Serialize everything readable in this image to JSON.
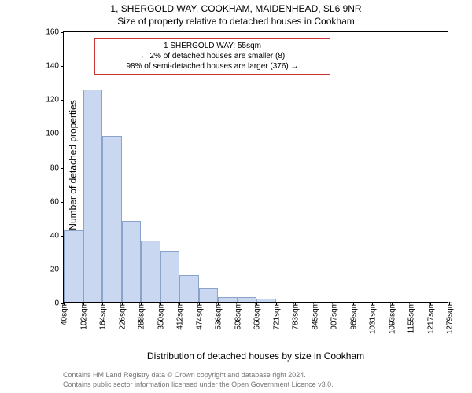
{
  "titles": {
    "main": "1, SHERGOLD WAY, COOKHAM, MAIDENHEAD, SL6 9NR",
    "sub": "Size of property relative to detached houses in Cookham"
  },
  "legend": {
    "line1": "1 SHERGOLD WAY: 55sqm",
    "line2": "← 2% of detached houses are smaller (8)",
    "line3": "98% of semi-detached houses are larger (376) →",
    "border_color": "#cc3333"
  },
  "axes": {
    "ylabel": "Number of detached properties",
    "xlabel": "Distribution of detached houses by size in Cookham"
  },
  "footer": {
    "line1": "Contains HM Land Registry data © Crown copyright and database right 2024.",
    "line2": "Contains public sector information licensed under the Open Government Licence v3.0."
  },
  "chart": {
    "type": "histogram",
    "background_color": "#ffffff",
    "plot_border_color": "#000000",
    "bar_fill": "#c9d8f0",
    "bar_stroke": "#8aa3c8",
    "ylim": [
      0,
      160
    ],
    "ytick_step": 20,
    "yticks": [
      0,
      20,
      40,
      60,
      80,
      100,
      120,
      140,
      160
    ],
    "xtick_labels": [
      "40sqm",
      "102sqm",
      "164sqm",
      "226sqm",
      "288sqm",
      "350sqm",
      "412sqm",
      "474sqm",
      "536sqm",
      "598sqm",
      "660sqm",
      "721sqm",
      "783sqm",
      "845sqm",
      "907sqm",
      "969sqm",
      "1031sqm",
      "1093sqm",
      "1155sqm",
      "1217sqm",
      "1279sqm"
    ],
    "bars": [
      {
        "value": 42
      },
      {
        "value": 125
      },
      {
        "value": 98
      },
      {
        "value": 48
      },
      {
        "value": 36
      },
      {
        "value": 30
      },
      {
        "value": 16
      },
      {
        "value": 8
      },
      {
        "value": 3
      },
      {
        "value": 3
      },
      {
        "value": 2
      },
      {
        "value": 0
      },
      {
        "value": 0
      },
      {
        "value": 0
      },
      {
        "value": 0
      },
      {
        "value": 0
      },
      {
        "value": 0
      },
      {
        "value": 0
      },
      {
        "value": 0
      },
      {
        "value": 0
      }
    ]
  }
}
